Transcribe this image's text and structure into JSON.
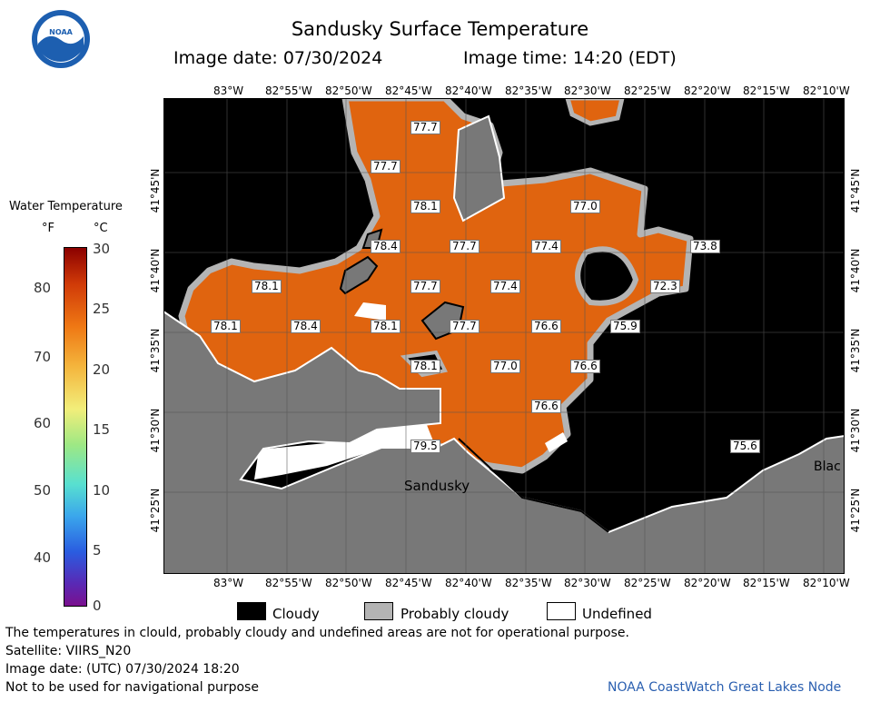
{
  "header": {
    "title": "Sandusky Surface Temperature",
    "image_date": "Image date: 07/30/2024",
    "image_time": "Image time: 14:20 (EDT)"
  },
  "colorbar": {
    "title": "Water Temperature",
    "unit_f": "°F",
    "unit_c": "°C",
    "f_ticks": [
      "80",
      "70",
      "60",
      "50",
      "40"
    ],
    "c_ticks": [
      "30",
      "25",
      "20",
      "15",
      "10",
      "5",
      "0"
    ]
  },
  "map": {
    "lon_labels": [
      "83°W",
      "82°55'W",
      "82°50'W",
      "82°45'W",
      "82°40'W",
      "82°35'W",
      "82°30'W",
      "82°25'W",
      "82°20'W",
      "82°15'W",
      "82°10'W"
    ],
    "lat_labels": [
      "41°45'N",
      "41°40'N",
      "41°35'N",
      "41°30'N",
      "41°25'N"
    ],
    "place_labels": [
      "Sandusky",
      "Blac"
    ],
    "temps": [
      "77.7",
      "77.7",
      "78.1",
      "77.0",
      "78.4",
      "77.7",
      "77.4",
      "73.8",
      "78.1",
      "77.7",
      "77.4",
      "72.3",
      "78.1",
      "78.4",
      "78.1",
      "77.7",
      "76.6",
      "75.9",
      "78.1",
      "77.0",
      "76.6",
      "76.6",
      "79.5",
      "75.6"
    ]
  },
  "legend": {
    "cloudy": "Cloudy",
    "probably_cloudy": "Probably cloudy",
    "undefined": "Undefined"
  },
  "footer": {
    "disclaimer": "The temperatures in clould, probably cloudy and undefined areas are not for operational purpose.",
    "satellite": "Satellite: VIIRS_N20",
    "utc_date": "Image date: (UTC) 07/30/2024  18:20",
    "nav": "Not to be used for navigational purpose",
    "credit": "NOAA CoastWatch Great Lakes Node"
  },
  "colors": {
    "water": "#e0640f",
    "cloudy": "#000000",
    "probably_cloudy": "#b4b4b4",
    "land": "#787878",
    "undefined": "#ffffff"
  }
}
